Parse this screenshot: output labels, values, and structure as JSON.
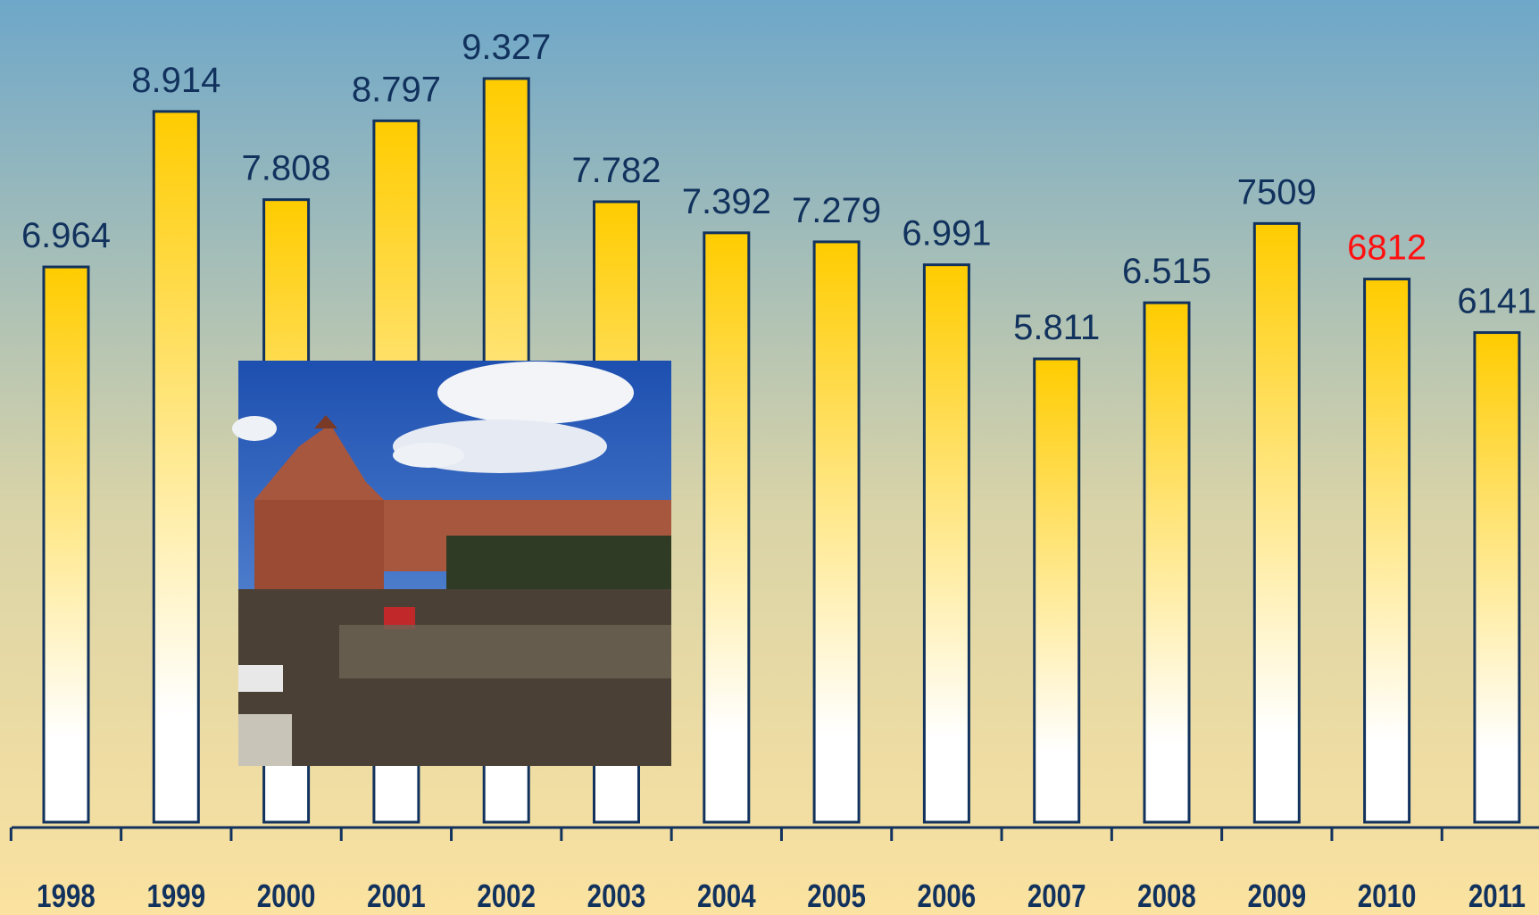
{
  "chart_data": {
    "type": "bar",
    "categories": [
      "1998",
      "1999",
      "2000",
      "2001",
      "2002",
      "2003",
      "2004",
      "2005",
      "2006",
      "2007",
      "2008",
      "2009",
      "2010",
      "2011"
    ],
    "values": [
      6964,
      8914,
      7808,
      8797,
      9327,
      7782,
      7392,
      7279,
      6991,
      5811,
      6515,
      7509,
      6812,
      6141
    ],
    "value_labels": [
      "6.964",
      "8.914",
      "7.808",
      "8.797",
      "9.327",
      "7.782",
      "7.392",
      "7.279",
      "6.991",
      "5.811",
      "6.515",
      "7509",
      "6812",
      "6141"
    ],
    "value_label_colors": [
      "#12325e",
      "#12325e",
      "#12325e",
      "#12325e",
      "#12325e",
      "#12325e",
      "#12325e",
      "#12325e",
      "#12325e",
      "#12325e",
      "#12325e",
      "#12325e",
      "#ff1010",
      "#12325e"
    ],
    "color": "#ffcc00"
  }
}
